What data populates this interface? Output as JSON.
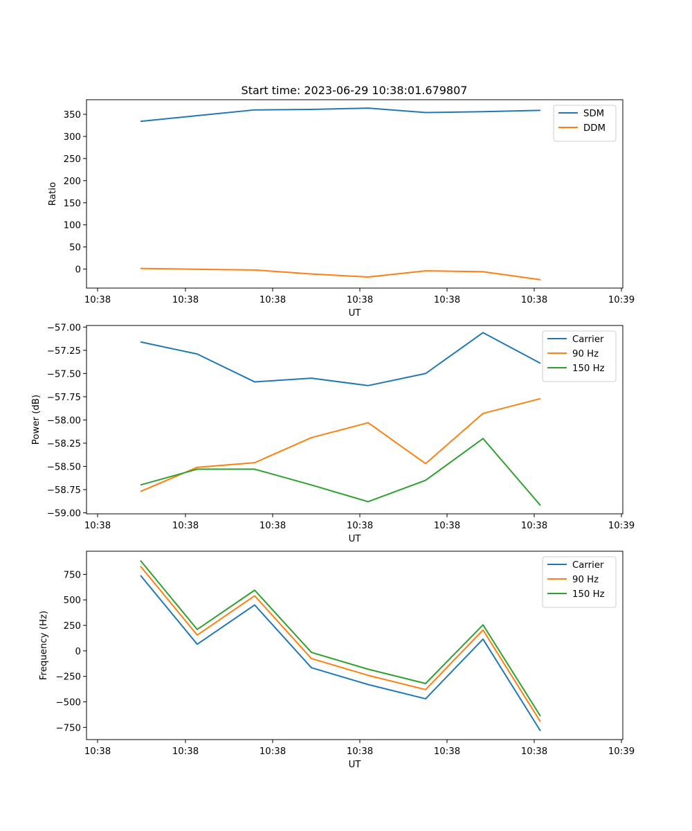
{
  "figure": {
    "title": "Start time: 2023-06-29 10:38:01.679807"
  },
  "colors": {
    "blue": "#1f77b4",
    "orange": "#ff7f0e",
    "green": "#2ca02c"
  },
  "chart_data": [
    {
      "type": "line",
      "title": "",
      "xlabel": "UT",
      "ylabel": "Ratio",
      "x_tick_labels": [
        "10:38",
        "10:38",
        "10:38",
        "10:38",
        "10:38",
        "10:38",
        "10:39"
      ],
      "y_ticks": [
        0,
        50,
        100,
        150,
        200,
        250,
        300,
        350
      ],
      "ylim": [
        -43,
        383
      ],
      "legend_position": "top-right",
      "grid": false,
      "series": [
        {
          "name": "SDM",
          "color": "#1f77b4",
          "values": [
            334,
            347,
            360,
            361,
            364,
            354,
            356,
            359
          ]
        },
        {
          "name": "DDM",
          "color": "#ff7f0e",
          "values": [
            1.5,
            -0.5,
            -2,
            -11,
            -18,
            -4,
            -6,
            -24
          ]
        }
      ]
    },
    {
      "type": "line",
      "title": "",
      "xlabel": "UT",
      "ylabel": "Power (dB)",
      "x_tick_labels": [
        "10:38",
        "10:38",
        "10:38",
        "10:38",
        "10:38",
        "10:38",
        "10:39"
      ],
      "y_ticks": [
        -59.0,
        -58.75,
        -58.5,
        -58.25,
        -58.0,
        -57.75,
        -57.5,
        -57.25,
        -57.0
      ],
      "y_tick_labels": [
        "−59.00",
        "−58.75",
        "−58.50",
        "−58.25",
        "−58.00",
        "−57.75",
        "−57.50",
        "−57.25",
        "−57.00"
      ],
      "ylim": [
        -59.0107,
        -56.9827
      ],
      "legend_position": "top-right",
      "grid": false,
      "series": [
        {
          "name": "Carrier",
          "color": "#1f77b4",
          "values": [
            -57.16,
            -57.29,
            -57.59,
            -57.55,
            -57.63,
            -57.5,
            -57.06,
            -57.39
          ]
        },
        {
          "name": "90 Hz",
          "color": "#ff7f0e",
          "values": [
            -58.77,
            -58.51,
            -58.46,
            -58.19,
            -58.03,
            -58.47,
            -57.93,
            -57.77
          ]
        },
        {
          "name": "150 Hz",
          "color": "#2ca02c",
          "values": [
            -58.7,
            -58.53,
            -58.53,
            -58.7,
            -58.88,
            -58.65,
            -58.2,
            -58.92
          ]
        }
      ]
    },
    {
      "type": "line",
      "title": "",
      "xlabel": "UT",
      "ylabel": "Frequency (Hz)",
      "x_tick_labels": [
        "10:38",
        "10:38",
        "10:38",
        "10:38",
        "10:38",
        "10:38",
        "10:39"
      ],
      "y_ticks": [
        -750,
        -500,
        -250,
        0,
        250,
        500,
        750
      ],
      "y_tick_labels": [
        "−750",
        "−500",
        "−250",
        "0",
        "250",
        "500",
        "750"
      ],
      "ylim": [
        -870,
        977
      ],
      "legend_position": "top-right",
      "grid": false,
      "series": [
        {
          "name": "Carrier",
          "color": "#1f77b4",
          "values": [
            740,
            65,
            450,
            -165,
            -330,
            -470,
            115,
            -785
          ]
        },
        {
          "name": "90 Hz",
          "color": "#ff7f0e",
          "values": [
            830,
            155,
            540,
            -75,
            -240,
            -380,
            205,
            -695
          ]
        },
        {
          "name": "150 Hz",
          "color": "#2ca02c",
          "values": [
            885,
            210,
            595,
            -15,
            -180,
            -320,
            255,
            -640
          ]
        }
      ]
    }
  ]
}
